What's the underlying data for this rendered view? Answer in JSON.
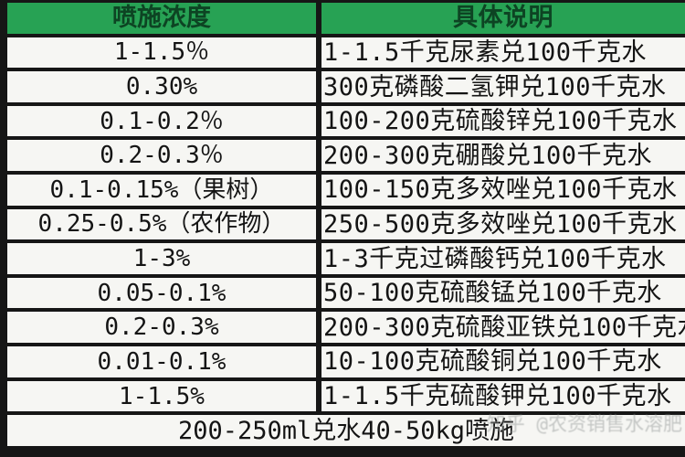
{
  "table": {
    "header": {
      "col1": "喷施浓度",
      "col2": "具体说明"
    },
    "rows": [
      {
        "concentration": "1-1.5％",
        "instruction": "1-1.5千克尿素兑100千克水"
      },
      {
        "concentration": "0.30%",
        "instruction": "300克磷酸二氢钾兑100千克水"
      },
      {
        "concentration": "0.1-0.2％",
        "instruction": "100-200克硫酸锌兑100千克水"
      },
      {
        "concentration": "0.2-0.3％",
        "instruction": "200-300克硼酸兑100千克水"
      },
      {
        "concentration": "0.1-0.15%（果树）",
        "instruction": "100-150克多效唑兑100千克水"
      },
      {
        "concentration": "0.25-0.5%（农作物）",
        "instruction": "250-500克多效唑兑100千克水"
      },
      {
        "concentration": "1-3%",
        "instruction": "1-3千克过磷酸钙兑100千克水"
      },
      {
        "concentration": "0.05-0.1%",
        "instruction": "50-100克硫酸锰兑100千克水"
      },
      {
        "concentration": "0.2-0.3%",
        "instruction": "200-300克硫酸亚铁兑100千克水"
      },
      {
        "concentration": "0.01-0.1%",
        "instruction": "10-100克硫酸铜兑100千克水"
      },
      {
        "concentration": "1-1.5%",
        "instruction": "1-1.5千克硫酸钾兑100千克水"
      }
    ],
    "footer": "200-250ml兑水40-50kg喷施"
  },
  "watermark": "知乎 @农资销售水溶肥",
  "colors": {
    "header_bg": "#27a254",
    "header_text": "#0d4423",
    "border": "#161616",
    "cell_bg": "#f6f6f3",
    "text": "#141414"
  }
}
